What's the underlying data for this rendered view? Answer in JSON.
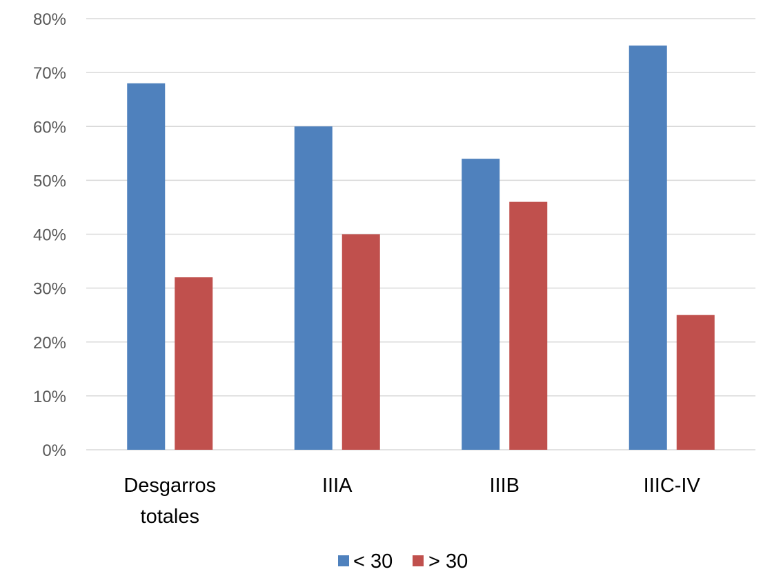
{
  "chart_data": {
    "type": "bar",
    "categories": [
      [
        "Desgarros",
        "totales"
      ],
      [
        "IIIA"
      ],
      [
        "IIIB"
      ],
      [
        "IIIC-IV"
      ]
    ],
    "series": [
      {
        "name": "< 30",
        "values": [
          68,
          60,
          54,
          75
        ],
        "color": "#4f81bd"
      },
      {
        "name": "> 30",
        "values": [
          32,
          40,
          46,
          25
        ],
        "color": "#c0504d"
      }
    ],
    "yticks": [
      "0%",
      "10%",
      "20%",
      "30%",
      "40%",
      "50%",
      "60%",
      "70%",
      "80%"
    ],
    "ylim": [
      0,
      80
    ],
    "ytick_step": 10,
    "grid": true,
    "legend_position": "bottom",
    "title": "",
    "xlabel": "",
    "ylabel": ""
  }
}
